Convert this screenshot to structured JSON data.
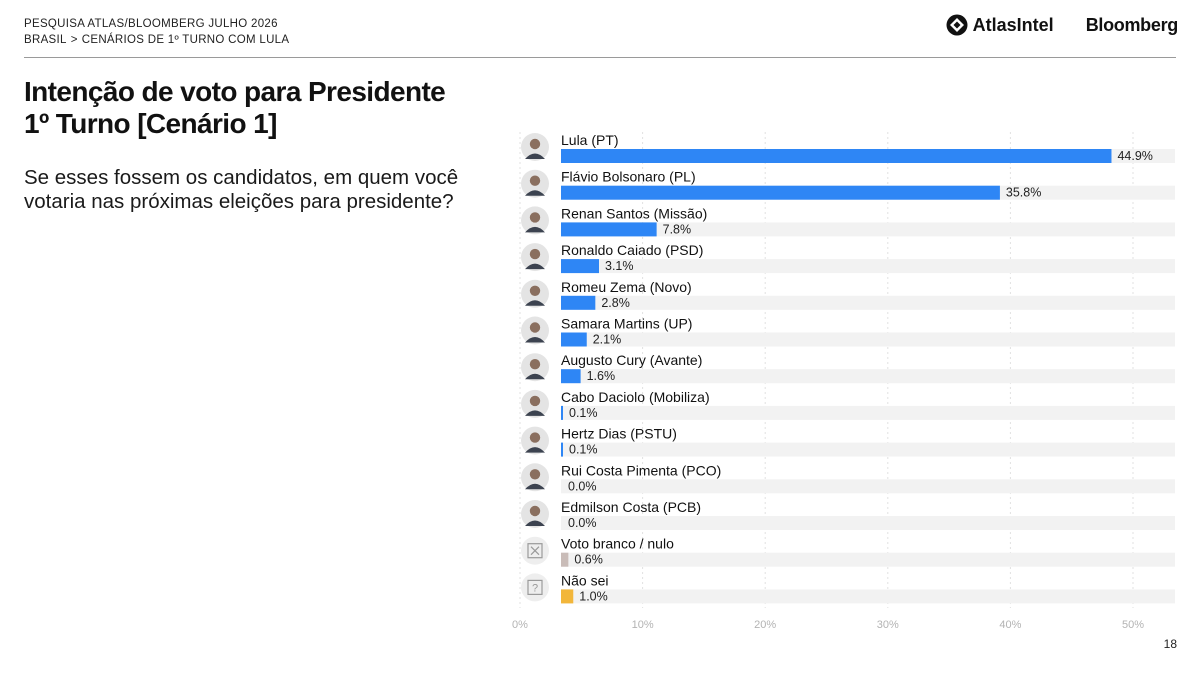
{
  "header": {
    "line1": "PESQUISA ATLAS/BLOOMBERG JULHO 2026",
    "line2_a": "BRASIL",
    "line2_sep": ">",
    "line2_b": "CENÁRIOS DE 1º TURNO COM LULA"
  },
  "logos": {
    "atlas": "AtlasIntel",
    "bloomberg": "Bloomberg"
  },
  "title": {
    "line1": "Intenção de voto para Presidente",
    "line2": "1º Turno [Cenário 1]"
  },
  "question": "Se esses fossem os candidatos, em quem você votaria nas próximas eleições para presidente?",
  "page_number": "18",
  "colors": {
    "candidate": "#2e86f5",
    "blank": "#c9bcb8",
    "unknown": "#f2b63a",
    "track": "#f2f2f2"
  },
  "chart_data": {
    "type": "bar",
    "orientation": "horizontal",
    "categories": [
      "Lula (PT)",
      "Flávio Bolsonaro (PL)",
      "Renan Santos (Missão)",
      "Ronaldo Caiado (PSD)",
      "Romeu Zema (Novo)",
      "Samara Martins (UP)",
      "Augusto Cury (Avante)",
      "Cabo Daciolo (Mobiliza)",
      "Hertz Dias (PSTU)",
      "Rui Costa Pimenta (PCO)",
      "Edmilson Costa (PCB)",
      "Voto branco / nulo",
      "Não sei"
    ],
    "values": [
      44.9,
      35.8,
      7.8,
      3.1,
      2.8,
      2.1,
      1.6,
      0.1,
      0.1,
      0.0,
      0.0,
      0.6,
      1.0
    ],
    "data_labels": [
      "44.9%",
      "35.8%",
      "7.8%",
      "3.1%",
      "2.8%",
      "2.1%",
      "1.6%",
      "0.1%",
      "0.1%",
      "0.0%",
      "0.0%",
      "0.6%",
      "1.0%"
    ],
    "kinds": [
      "candidate",
      "candidate",
      "candidate",
      "candidate",
      "candidate",
      "candidate",
      "candidate",
      "candidate",
      "candidate",
      "candidate",
      "candidate",
      "blank",
      "unknown"
    ],
    "xticks": [
      "0%",
      "10%",
      "20%",
      "30%",
      "40%",
      "50%"
    ],
    "xlim": [
      0,
      52
    ],
    "grid": true
  }
}
